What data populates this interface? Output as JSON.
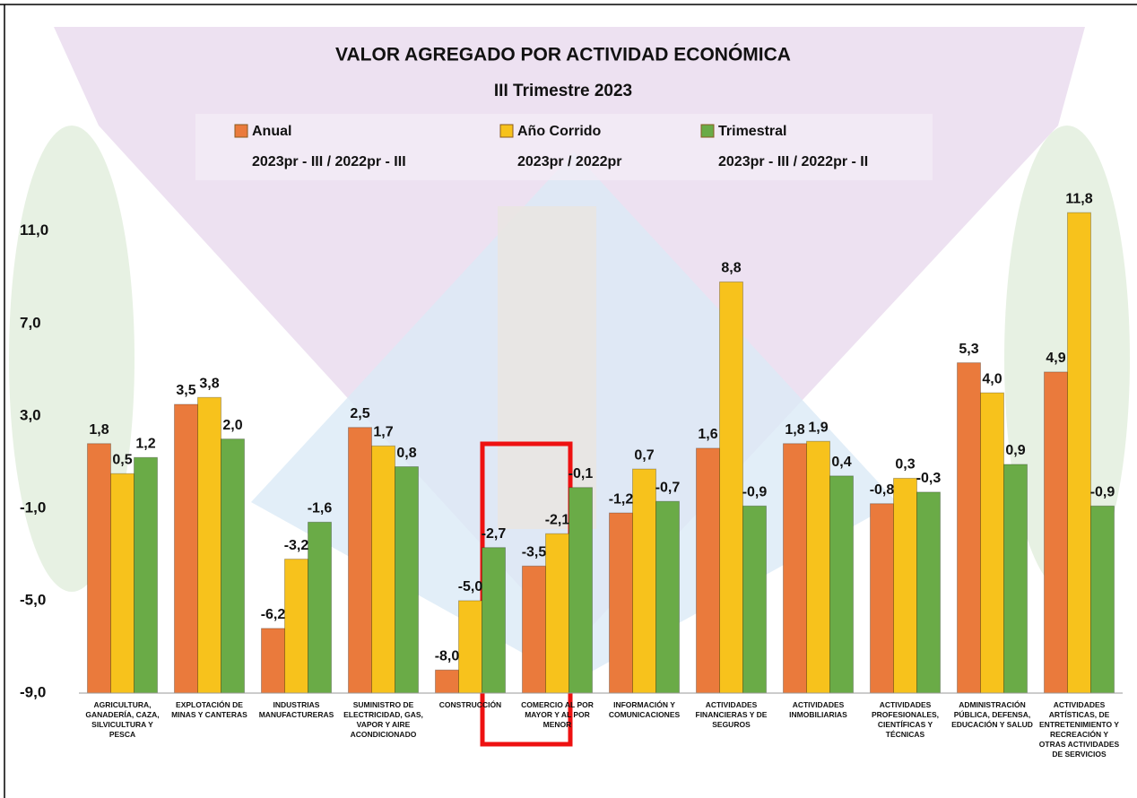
{
  "chart_data": {
    "type": "bar",
    "title": "VALOR AGREGADO POR ACTIVIDAD ECONÓMICA",
    "subtitle": "III Trimestre 2023",
    "categories": [
      "AGRICULTURA, GANADERÍA, CAZA, SILVICULTURA Y PESCA",
      "EXPLOTACIÓN DE MINAS Y CANTERAS",
      "INDUSTRIAS MANUFACTURERAS",
      "SUMINISTRO DE ELECTRICIDAD, GAS, VAPOR Y AIRE ACONDICIONADO",
      "CONSTRUCCIÓN",
      "COMERCIO AL POR MAYOR Y AL POR MENOR",
      "INFORMACIÓN Y COMUNICACIONES",
      "ACTIVIDADES FINANCIERAS Y DE SEGUROS",
      "ACTIVIDADES INMOBILIARIAS",
      "ACTIVIDADES PROFESIONALES, CIENTÍFICAS Y TÉCNICAS",
      "ADMINISTRACIÓN PÚBLICA, DEFENSA, EDUCACIÓN Y SALUD",
      "ACTIVIDADES ARTÍSTICAS, DE ENTRETENIMIENTO Y RECREACIÓN Y OTRAS ACTIVIDADES DE SERVICIOS"
    ],
    "series": [
      {
        "name": "Anual",
        "period": "2023pr - III / 2022pr - III",
        "color": "#ea7a3c",
        "values": [
          1.8,
          3.5,
          -6.2,
          2.5,
          -8.0,
          -3.5,
          -1.2,
          1.6,
          1.8,
          -0.8,
          5.3,
          4.9
        ],
        "value_labels": [
          "1,8",
          "3,5",
          "-6,2",
          "2,5",
          "-8,0",
          "-3,5",
          "-1,2",
          "1,6",
          "1,8",
          "-0,8",
          "5,3",
          "4,9"
        ]
      },
      {
        "name": "Año Corrido",
        "period": "2023pr / 2022pr",
        "color": "#f7c21c",
        "values": [
          0.5,
          3.8,
          -3.2,
          1.7,
          -5.0,
          -2.1,
          0.7,
          8.8,
          1.9,
          0.3,
          4.0,
          11.8
        ],
        "value_labels": [
          "0,5",
          "3,8",
          "-3,2",
          "1,7",
          "-5,0",
          "-2,1",
          "0,7",
          "8,8",
          "1,9",
          "0,3",
          "4,0",
          "11,8"
        ]
      },
      {
        "name": "Trimestral",
        "period": "2023pr - III / 2022pr - II",
        "color": "#6aab47",
        "values": [
          1.2,
          2.0,
          -1.6,
          0.8,
          -2.7,
          -0.1,
          -0.7,
          -0.9,
          0.4,
          -0.3,
          0.9,
          -0.9
        ],
        "value_labels": [
          "1,2",
          "2,0",
          "-1,6",
          "0,8",
          "-2,7",
          "-0,1",
          "-0,7",
          "-0,9",
          "0,4",
          "-0,3",
          "0,9",
          "-0,9"
        ]
      }
    ],
    "ylim": [
      -9,
      12
    ],
    "yticks": [
      {
        "value": -9,
        "label": "-9,0"
      },
      {
        "value": -5,
        "label": "-5,0"
      },
      {
        "value": -1,
        "label": "-1,0"
      },
      {
        "value": 3,
        "label": "3,0"
      },
      {
        "value": 7,
        "label": "7,0"
      },
      {
        "value": 11,
        "label": "11,0"
      }
    ],
    "grid": false
  }
}
